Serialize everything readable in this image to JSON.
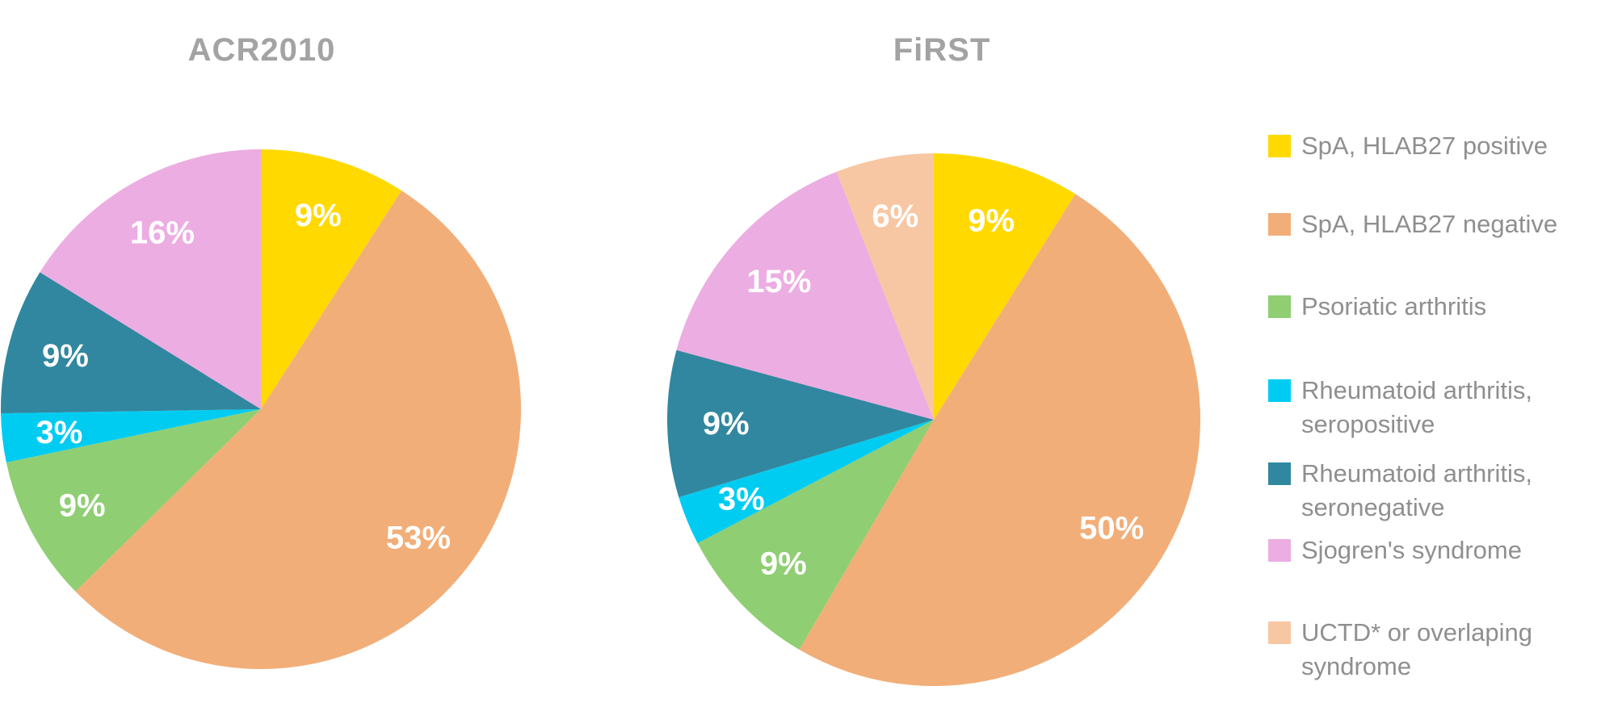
{
  "figure": {
    "background_color": "#FFFFFF",
    "title_color": "#A3A3A3",
    "legend_text_color": "#8F8F8F",
    "data_label_color": "#FFFFFF"
  },
  "chart_data": [
    {
      "type": "pie",
      "title": "ACR2010",
      "direction": "clockwise",
      "start_angle_deg": 0,
      "legend_position": "right-shared",
      "categories": [
        "SpA, HLAB27 positive",
        "SpA, HLAB27 negative",
        "Psoriatic arthritis",
        "Rheumatoid arthritis, seropositive",
        "Rheumatoid arthritis, seronegative",
        "Sjogren's syndrome"
      ],
      "values": [
        9,
        53,
        9,
        3,
        9,
        16
      ],
      "data_labels": [
        "9%",
        "53%",
        "9%",
        "3%",
        "9%",
        "16%"
      ],
      "colors": [
        "#FFD900",
        "#F2AE78",
        "#90CE73",
        "#00CCF2",
        "#31879F",
        "#ECADE2"
      ]
    },
    {
      "type": "pie",
      "title": "FiRST",
      "direction": "clockwise",
      "start_angle_deg": 0,
      "legend_position": "right-shared",
      "categories": [
        "SpA, HLAB27 positive",
        "SpA, HLAB27 negative",
        "Psoriatic arthritis",
        "Rheumatoid arthritis, seropositive",
        "Rheumatoid arthritis, seronegative",
        "Sjogren's syndrome",
        "UCTD* or overlaping syndrome"
      ],
      "values": [
        9,
        50,
        9,
        3,
        9,
        15,
        6
      ],
      "data_labels": [
        "9%",
        "50%",
        "9%",
        "3%",
        "9%",
        "15%",
        "6%"
      ],
      "colors": [
        "#FFD900",
        "#F2AE78",
        "#90CE73",
        "#00CCF2",
        "#31879F",
        "#ECADE2",
        "#F7C7A3"
      ]
    }
  ],
  "legend": {
    "items": [
      {
        "label": "SpA, HLAB27 positive",
        "color": "#FFD900"
      },
      {
        "label": "SpA, HLAB27 negative",
        "color": "#F2AE78"
      },
      {
        "label": "Psoriatic arthritis",
        "color": "#90CE73"
      },
      {
        "label": "Rheumatoid arthritis, seropositive",
        "color": "#00CCF2"
      },
      {
        "label": "Rheumatoid arthritis, seronegative",
        "color": "#31879F"
      },
      {
        "label": "Sjogren's syndrome",
        "color": "#ECADE2"
      },
      {
        "label": "UCTD* or overlaping syndrome",
        "color": "#F7C7A3"
      }
    ]
  }
}
